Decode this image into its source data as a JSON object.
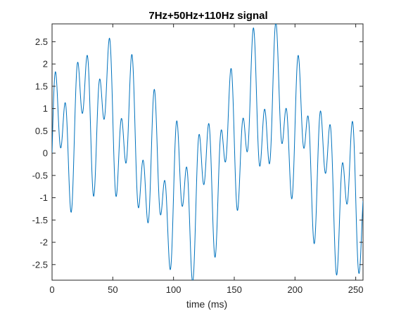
{
  "chart_data": {
    "type": "line",
    "title": "7Hz+50Hz+110Hz signal",
    "xlabel": "time (ms)",
    "ylabel": "",
    "xlim": [
      0,
      256
    ],
    "ylim": [
      -2.85,
      2.9
    ],
    "xticks": [
      0,
      50,
      100,
      150,
      200,
      250
    ],
    "xtick_labels": [
      "0",
      "50",
      "100",
      "150",
      "200",
      "250"
    ],
    "yticks": [
      -2.5,
      -2,
      -1.5,
      -1,
      -0.5,
      0,
      0.5,
      1,
      1.5,
      2,
      2.5
    ],
    "ytick_labels": [
      "-2.5",
      "-2",
      "-1.5",
      "-1",
      "-0.5",
      "0",
      "0.5",
      "1",
      "1.5",
      "2",
      "2.5"
    ],
    "grid": false,
    "line_color": "#0072BD",
    "series": [
      {
        "signal": {
          "components": [
            {
              "freq_hz": 7,
              "amplitude": 1.0,
              "phase": 0
            },
            {
              "freq_hz": 50,
              "amplitude": 1.0,
              "phase": 0
            },
            {
              "freq_hz": 110,
              "amplitude": 1.0,
              "phase": 0
            }
          ],
          "x_start_ms": 0,
          "x_end_ms": 256,
          "x_step_ms": 0.25
        }
      }
    ]
  }
}
